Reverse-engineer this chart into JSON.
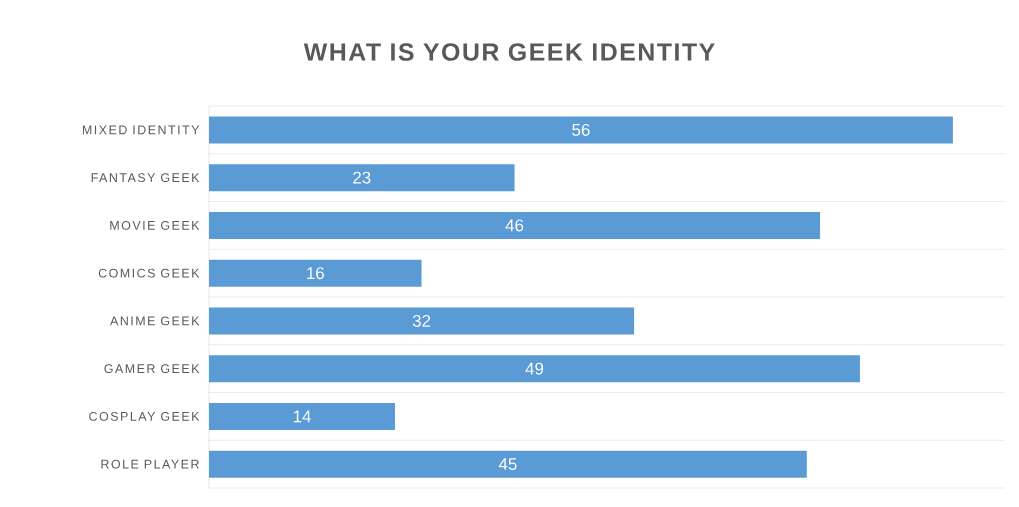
{
  "chart_data": {
    "type": "bar",
    "orientation": "horizontal",
    "title": "WHAT IS YOUR GEEK IDENTITY",
    "categories": [
      "MIXED IDENTITY",
      "FANTASY GEEK",
      "MOVIE GEEK",
      "COMICS GEEK",
      "ANIME GEEK",
      "GAMER GEEK",
      "COSPLAY GEEK",
      "ROLE PLAYER"
    ],
    "values": [
      56,
      23,
      46,
      16,
      32,
      49,
      14,
      45
    ],
    "color": "#5b9bd5",
    "data_labels": true,
    "grid": "y"
  }
}
